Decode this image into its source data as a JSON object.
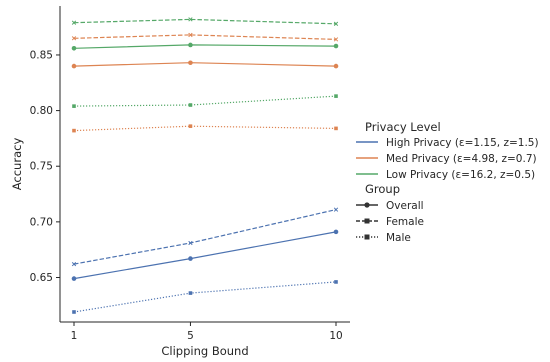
{
  "chart_data": {
    "type": "line",
    "xlabel": "Clipping Bound",
    "ylabel": "Accuracy",
    "x": [
      1,
      5,
      10
    ],
    "x_ticks": [
      "1",
      "5",
      "10"
    ],
    "y_ticks": [
      "0.65",
      "0.70",
      "0.75",
      "0.80",
      "0.85"
    ],
    "ylim": [
      0.61,
      0.894
    ],
    "grid": false,
    "legend_placement": "right",
    "legend": {
      "privacy_title": "Privacy Level",
      "privacy_items": [
        {
          "label": "High Privacy (ε=1.15, z=1.5)",
          "color": "#4c72b0"
        },
        {
          "label": "Med Privacy (ε=4.98, z=0.7)",
          "color": "#dd8452"
        },
        {
          "label": "Low Privacy (ε=16.2, z=0.5)",
          "color": "#55a868"
        }
      ],
      "group_title": "Group",
      "group_items": [
        {
          "label": "Overall",
          "style": "solid",
          "marker": "circle"
        },
        {
          "label": "Female",
          "style": "dashed",
          "marker": "x"
        },
        {
          "label": "Male",
          "style": "dotted",
          "marker": "square"
        }
      ]
    },
    "series": [
      {
        "privacy": "High Privacy (ε=1.15, z=1.5)",
        "group": "Overall",
        "color": "#4c72b0",
        "style": "solid",
        "marker": "circle",
        "values": [
          0.649,
          0.667,
          0.691
        ]
      },
      {
        "privacy": "High Privacy (ε=1.15, z=1.5)",
        "group": "Female",
        "color": "#4c72b0",
        "style": "dashed",
        "marker": "x",
        "values": [
          0.662,
          0.681,
          0.711
        ]
      },
      {
        "privacy": "High Privacy (ε=1.15, z=1.5)",
        "group": "Male",
        "color": "#4c72b0",
        "style": "dotted",
        "marker": "square",
        "values": [
          0.619,
          0.636,
          0.646
        ]
      },
      {
        "privacy": "Med Privacy (ε=4.98, z=0.7)",
        "group": "Overall",
        "color": "#dd8452",
        "style": "solid",
        "marker": "circle",
        "values": [
          0.84,
          0.843,
          0.84
        ]
      },
      {
        "privacy": "Med Privacy (ε=4.98, z=0.7)",
        "group": "Female",
        "color": "#dd8452",
        "style": "dashed",
        "marker": "x",
        "values": [
          0.865,
          0.868,
          0.864
        ]
      },
      {
        "privacy": "Med Privacy (ε=4.98, z=0.7)",
        "group": "Male",
        "color": "#dd8452",
        "style": "dotted",
        "marker": "square",
        "values": [
          0.782,
          0.786,
          0.784
        ]
      },
      {
        "privacy": "Low Privacy (ε=16.2, z=0.5)",
        "group": "Overall",
        "color": "#55a868",
        "style": "solid",
        "marker": "circle",
        "values": [
          0.856,
          0.859,
          0.858
        ]
      },
      {
        "privacy": "Low Privacy (ε=16.2, z=0.5)",
        "group": "Female",
        "color": "#55a868",
        "style": "dashed",
        "marker": "x",
        "values": [
          0.879,
          0.882,
          0.878
        ]
      },
      {
        "privacy": "Low Privacy (ε=16.2, z=0.5)",
        "group": "Male",
        "color": "#55a868",
        "style": "dotted",
        "marker": "square",
        "values": [
          0.804,
          0.805,
          0.813
        ]
      }
    ]
  }
}
